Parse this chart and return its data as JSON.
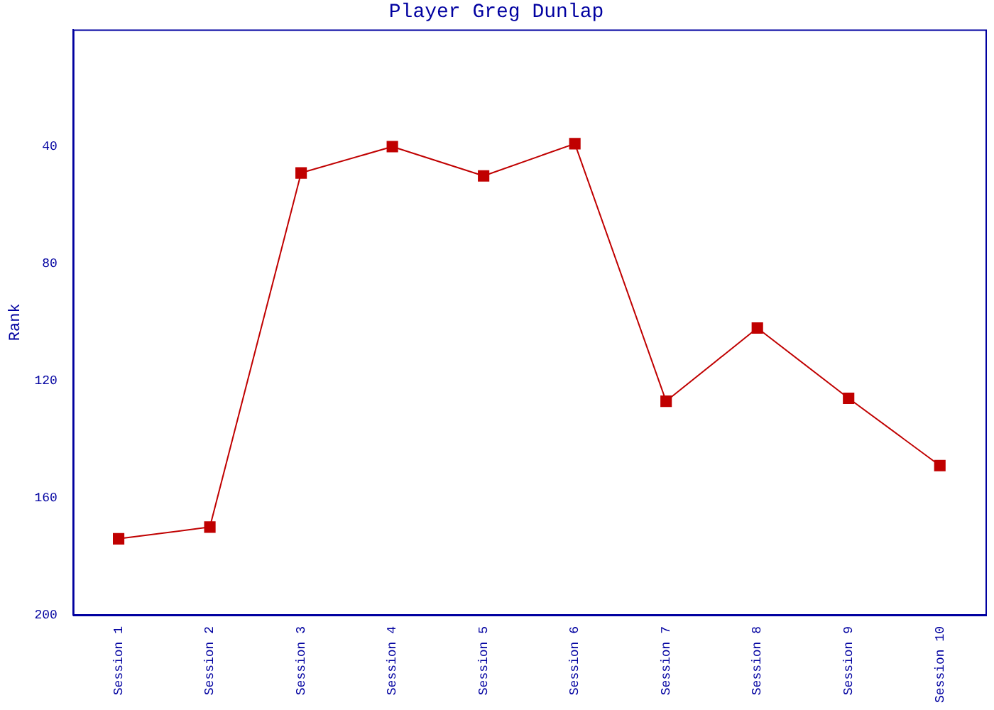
{
  "chart_data": {
    "type": "line",
    "title": "Player Greg Dunlap",
    "ylabel": "Rank",
    "categories": [
      "Session 1",
      "Session 2",
      "Session 3",
      "Session 4",
      "Session 5",
      "Session 6",
      "Session 7",
      "Session 8",
      "Session 9",
      "Session 10"
    ],
    "series": [
      {
        "color": "#c00000",
        "values": [
          174,
          170,
          49,
          40,
          50,
          39,
          127,
          102,
          126,
          149
        ]
      }
    ],
    "ylim": [
      200,
      0
    ],
    "yticks": [
      40,
      80,
      120,
      160,
      200
    ],
    "grid": false,
    "legend": false,
    "marker": "square",
    "line_style": "solid"
  }
}
